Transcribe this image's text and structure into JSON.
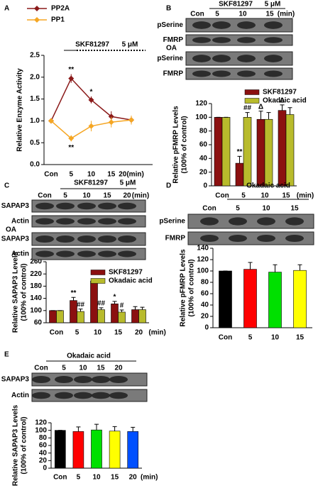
{
  "chart_data": [
    {
      "type": "line",
      "panel": "A",
      "ylabel": "Relative Enzyme Activity",
      "categories": [
        "Con",
        "5",
        "10",
        "15",
        "20(min)"
      ],
      "series": [
        {
          "name": "PP2A",
          "color": "#8b1a1a",
          "values": [
            1,
            1.97,
            1.48,
            1.1,
            1.02
          ],
          "errors": [
            0,
            0.1,
            0.08,
            0.12,
            0.1
          ]
        },
        {
          "name": "PP1",
          "color": "#f5a623",
          "values": [
            1,
            0.6,
            0.88,
            0.97,
            1.02
          ],
          "errors": [
            0,
            0.07,
            0.12,
            0.12,
            0.1
          ]
        }
      ],
      "ylim": [
        0,
        2.5
      ],
      "yticks": [
        {
          "value": 0,
          "label": "0.0"
        },
        {
          "value": 0.5,
          "label": "0.5"
        },
        {
          "value": 1,
          "label": "1.0"
        },
        {
          "value": 1.5,
          "label": "1.5"
        },
        {
          "value": 2,
          "label": "2.0"
        },
        {
          "value": 2.5,
          "label": "2.5"
        }
      ],
      "treatment": "SKF81297",
      "dose": "5 μM",
      "annotations": [
        "**",
        "*",
        "**"
      ]
    },
    {
      "type": "bar",
      "panel": "B",
      "blot": {
        "header": [
          "Con",
          "5",
          "10",
          "15",
          "(min)"
        ],
        "treatment": "SKF81297",
        "dose": "5 μM",
        "rows": [
          "pSerine",
          "FMRP",
          "pSerine",
          "FMRP"
        ],
        "group_label": "OA"
      },
      "ylabel_lines": [
        "Relative pFMRP Levels",
        "(100% of control)"
      ],
      "categories": [
        "Con",
        "5",
        "10",
        "15"
      ],
      "x_unit": "(min)",
      "series": [
        {
          "name": "SKF81297",
          "color": "#8b1010",
          "values": [
            100,
            33,
            97,
            110
          ],
          "errors": [
            0,
            10,
            12,
            8
          ]
        },
        {
          "name": "Okadaic acid",
          "color": "#b8bb2c",
          "values": [
            100,
            100,
            97,
            104
          ],
          "errors": [
            0,
            7,
            10,
            10
          ]
        }
      ],
      "ylim": [
        0,
        120
      ],
      "yticks": [
        0,
        20,
        40,
        60,
        80,
        100,
        120
      ],
      "annotations": [
        "**",
        "##",
        "Δ",
        "Δ"
      ]
    },
    {
      "type": "bar",
      "panel": "C",
      "blot": {
        "header": [
          "Con",
          "5",
          "10",
          "15",
          "20",
          "(min)"
        ],
        "treatment": "SKF81297",
        "dose": "5 μM",
        "rows": [
          "SAPAP3",
          "Actin",
          "SAPAP3",
          "Actin"
        ],
        "group_label": "OA"
      },
      "ylabel_lines": [
        "Relative SAPAP3 Levels",
        "(100% of control)"
      ],
      "categories": [
        "Con",
        "5",
        "10",
        "15",
        "20"
      ],
      "x_unit": "(min)",
      "series": [
        {
          "name": "SKF81297",
          "color": "#8b1010",
          "values": [
            100,
            133,
            197,
            122,
            103
          ],
          "errors": [
            0,
            10,
            7,
            8,
            10
          ]
        },
        {
          "name": "Okadaic acid",
          "color": "#b8bb2c",
          "values": [
            100,
            97,
            103,
            95,
            103
          ],
          "errors": [
            0,
            8,
            6,
            7,
            8
          ]
        }
      ],
      "ylim": [
        60,
        260
      ],
      "yticks": [
        60,
        100,
        140,
        180,
        220,
        260
      ],
      "annotations": [
        "**",
        "##",
        "**",
        "##",
        "*",
        "#"
      ]
    },
    {
      "type": "bar",
      "panel": "D",
      "blot": {
        "header": [
          "Con",
          "5",
          "10",
          "15"
        ],
        "treatment": "Okadaic acid",
        "rows": [
          "pSerine",
          "FMRP"
        ]
      },
      "ylabel_lines": [
        "Relative pFMRP Levels",
        "(100% of control)"
      ],
      "categories": [
        "Con",
        "5",
        "10",
        "15"
      ],
      "series": [
        {
          "colors": [
            "#000000",
            "#ff0000",
            "#00e000",
            "#ffff00"
          ],
          "values": [
            100,
            103,
            98,
            101
          ],
          "errors": [
            0,
            12,
            13,
            10
          ]
        }
      ],
      "ylim": [
        0,
        140
      ],
      "yticks": [
        0,
        20,
        40,
        60,
        80,
        100,
        120,
        140
      ]
    },
    {
      "type": "bar",
      "panel": "E",
      "blot": {
        "header": [
          "Con",
          "5",
          "10",
          "15",
          "20"
        ],
        "treatment": "Okadaic acid",
        "rows": [
          "SAPAP3",
          "Actin"
        ]
      },
      "ylabel_lines": [
        "Relative SAPAP3 Levels",
        "(100% of control)"
      ],
      "categories": [
        "Con",
        "5",
        "10",
        "15",
        "20"
      ],
      "x_unit": "(min)",
      "series": [
        {
          "colors": [
            "#000000",
            "#ff0000",
            "#00e000",
            "#ffff00",
            "#0050ff"
          ],
          "values": [
            100,
            97,
            101,
            98,
            97
          ],
          "errors": [
            0,
            12,
            15,
            12,
            11
          ]
        }
      ],
      "ylim": [
        0,
        120
      ],
      "yticks": [
        0,
        20,
        40,
        60,
        80,
        100,
        120
      ]
    }
  ]
}
